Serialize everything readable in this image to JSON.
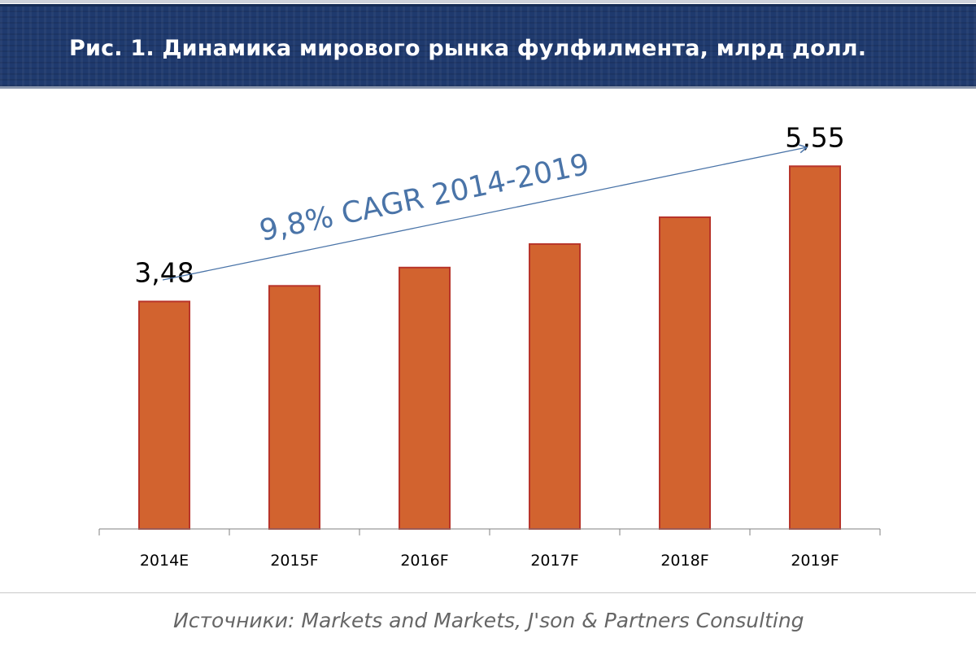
{
  "header": {
    "title": "Рис. 1. Динамика мирового рынка фулфилмента, млрд долл."
  },
  "chart_data": {
    "type": "bar",
    "categories": [
      "2014E",
      "2015F",
      "2016F",
      "2017F",
      "2018F",
      "2019F"
    ],
    "values": [
      3.48,
      3.72,
      4.0,
      4.36,
      4.77,
      5.55
    ],
    "data_labels": [
      "3,48",
      "",
      "",
      "",
      "",
      "5,55"
    ],
    "ylim": [
      0,
      6.6
    ],
    "bar_color": "#d2632f",
    "bar_edge_color": "#b8352a",
    "annotation": {
      "text": "9,8% CAGR 2014-2019",
      "color": "#4a74a8"
    },
    "title": "",
    "xlabel": "",
    "ylabel": ""
  },
  "footer": {
    "source": "Источники: Markets and Markets, J'son & Partners Consulting"
  }
}
